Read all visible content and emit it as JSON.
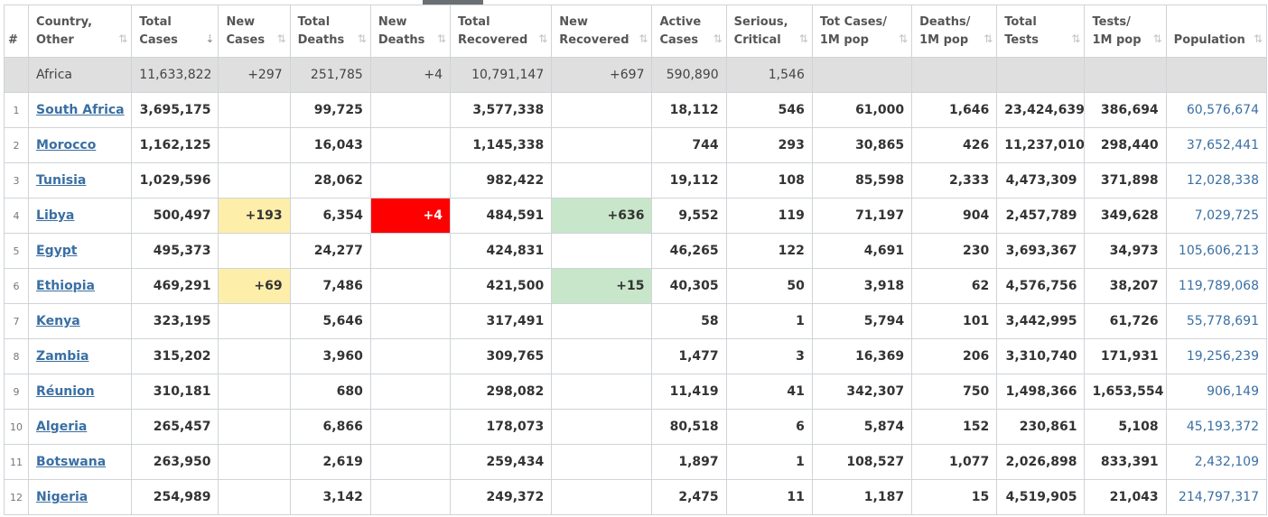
{
  "columns": [
    {
      "label_1": "#",
      "label_2": ""
    },
    {
      "label_1": "Country,",
      "label_2": "Other"
    },
    {
      "label_1": "Total",
      "label_2": "Cases"
    },
    {
      "label_1": "New",
      "label_2": "Cases"
    },
    {
      "label_1": "Total",
      "label_2": "Deaths"
    },
    {
      "label_1": "New",
      "label_2": "Deaths"
    },
    {
      "label_1": "Total",
      "label_2": "Recovered"
    },
    {
      "label_1": "New",
      "label_2": "Recovered"
    },
    {
      "label_1": "Active",
      "label_2": "Cases"
    },
    {
      "label_1": "Serious,",
      "label_2": "Critical"
    },
    {
      "label_1": "Tot Cases/",
      "label_2": "1M pop"
    },
    {
      "label_1": "Deaths/",
      "label_2": "1M pop"
    },
    {
      "label_1": "Total",
      "label_2": "Tests"
    },
    {
      "label_1": "Tests/",
      "label_2": "1M pop"
    },
    {
      "label_1": "Population",
      "label_2": ""
    }
  ],
  "sort_icon": "⇅",
  "sort_active_icon": "⇣",
  "continent_row": {
    "name": "Africa",
    "total_cases": "11,633,822",
    "new_cases": "+297",
    "total_deaths": "251,785",
    "new_deaths": "+4",
    "total_recovered": "10,791,147",
    "new_recovered": "+697",
    "active_cases": "590,890",
    "serious": "1,546",
    "cases_per_m": "",
    "deaths_per_m": "",
    "total_tests": "",
    "tests_per_m": "",
    "population": ""
  },
  "rows": [
    {
      "rank": "1",
      "country": "South Africa",
      "total_cases": "3,695,175",
      "new_cases": "",
      "total_deaths": "99,725",
      "new_deaths": "",
      "total_recovered": "3,577,338",
      "new_recovered": "",
      "active_cases": "18,112",
      "serious": "546",
      "cases_per_m": "61,000",
      "deaths_per_m": "1,646",
      "total_tests": "23,424,639",
      "tests_per_m": "386,694",
      "population": "60,576,674"
    },
    {
      "rank": "2",
      "country": "Morocco",
      "total_cases": "1,162,125",
      "new_cases": "",
      "total_deaths": "16,043",
      "new_deaths": "",
      "total_recovered": "1,145,338",
      "new_recovered": "",
      "active_cases": "744",
      "serious": "293",
      "cases_per_m": "30,865",
      "deaths_per_m": "426",
      "total_tests": "11,237,010",
      "tests_per_m": "298,440",
      "population": "37,652,441"
    },
    {
      "rank": "3",
      "country": "Tunisia",
      "total_cases": "1,029,596",
      "new_cases": "",
      "total_deaths": "28,062",
      "new_deaths": "",
      "total_recovered": "982,422",
      "new_recovered": "",
      "active_cases": "19,112",
      "serious": "108",
      "cases_per_m": "85,598",
      "deaths_per_m": "2,333",
      "total_tests": "4,473,309",
      "tests_per_m": "371,898",
      "population": "12,028,338"
    },
    {
      "rank": "4",
      "country": "Libya",
      "total_cases": "500,497",
      "new_cases": "+193",
      "total_deaths": "6,354",
      "new_deaths": "+4",
      "total_recovered": "484,591",
      "new_recovered": "+636",
      "active_cases": "9,552",
      "serious": "119",
      "cases_per_m": "71,197",
      "deaths_per_m": "904",
      "total_tests": "2,457,789",
      "tests_per_m": "349,628",
      "population": "7,029,725"
    },
    {
      "rank": "5",
      "country": "Egypt",
      "total_cases": "495,373",
      "new_cases": "",
      "total_deaths": "24,277",
      "new_deaths": "",
      "total_recovered": "424,831",
      "new_recovered": "",
      "active_cases": "46,265",
      "serious": "122",
      "cases_per_m": "4,691",
      "deaths_per_m": "230",
      "total_tests": "3,693,367",
      "tests_per_m": "34,973",
      "population": "105,606,213"
    },
    {
      "rank": "6",
      "country": "Ethiopia",
      "total_cases": "469,291",
      "new_cases": "+69",
      "total_deaths": "7,486",
      "new_deaths": "",
      "total_recovered": "421,500",
      "new_recovered": "+15",
      "active_cases": "40,305",
      "serious": "50",
      "cases_per_m": "3,918",
      "deaths_per_m": "62",
      "total_tests": "4,576,756",
      "tests_per_m": "38,207",
      "population": "119,789,068"
    },
    {
      "rank": "7",
      "country": "Kenya",
      "total_cases": "323,195",
      "new_cases": "",
      "total_deaths": "5,646",
      "new_deaths": "",
      "total_recovered": "317,491",
      "new_recovered": "",
      "active_cases": "58",
      "serious": "1",
      "cases_per_m": "5,794",
      "deaths_per_m": "101",
      "total_tests": "3,442,995",
      "tests_per_m": "61,726",
      "population": "55,778,691"
    },
    {
      "rank": "8",
      "country": "Zambia",
      "total_cases": "315,202",
      "new_cases": "",
      "total_deaths": "3,960",
      "new_deaths": "",
      "total_recovered": "309,765",
      "new_recovered": "",
      "active_cases": "1,477",
      "serious": "3",
      "cases_per_m": "16,369",
      "deaths_per_m": "206",
      "total_tests": "3,310,740",
      "tests_per_m": "171,931",
      "population": "19,256,239"
    },
    {
      "rank": "9",
      "country": "Réunion",
      "total_cases": "310,181",
      "new_cases": "",
      "total_deaths": "680",
      "new_deaths": "",
      "total_recovered": "298,082",
      "new_recovered": "",
      "active_cases": "11,419",
      "serious": "41",
      "cases_per_m": "342,307",
      "deaths_per_m": "750",
      "total_tests": "1,498,366",
      "tests_per_m": "1,653,554",
      "population": "906,149"
    },
    {
      "rank": "10",
      "country": "Algeria",
      "total_cases": "265,457",
      "new_cases": "",
      "total_deaths": "6,866",
      "new_deaths": "",
      "total_recovered": "178,073",
      "new_recovered": "",
      "active_cases": "80,518",
      "serious": "6",
      "cases_per_m": "5,874",
      "deaths_per_m": "152",
      "total_tests": "230,861",
      "tests_per_m": "5,108",
      "population": "45,193,372"
    },
    {
      "rank": "11",
      "country": "Botswana",
      "total_cases": "263,950",
      "new_cases": "",
      "total_deaths": "2,619",
      "new_deaths": "",
      "total_recovered": "259,434",
      "new_recovered": "",
      "active_cases": "1,897",
      "serious": "1",
      "cases_per_m": "108,527",
      "deaths_per_m": "1,077",
      "total_tests": "2,026,898",
      "tests_per_m": "833,391",
      "population": "2,432,109"
    },
    {
      "rank": "12",
      "country": "Nigeria",
      "total_cases": "254,989",
      "new_cases": "",
      "total_deaths": "3,142",
      "new_deaths": "",
      "total_recovered": "249,372",
      "new_recovered": "",
      "active_cases": "2,475",
      "serious": "11",
      "cases_per_m": "1,187",
      "deaths_per_m": "15",
      "total_tests": "4,519,905",
      "tests_per_m": "21,043",
      "population": "214,797,317"
    }
  ],
  "colors": {
    "new_cases_bg": "#fdeeaa",
    "new_deaths_bg": "#ff0000",
    "new_recovered_bg": "#c8e6c9",
    "link": "#3a6fa3",
    "continent_bg": "#dfdfdf"
  }
}
